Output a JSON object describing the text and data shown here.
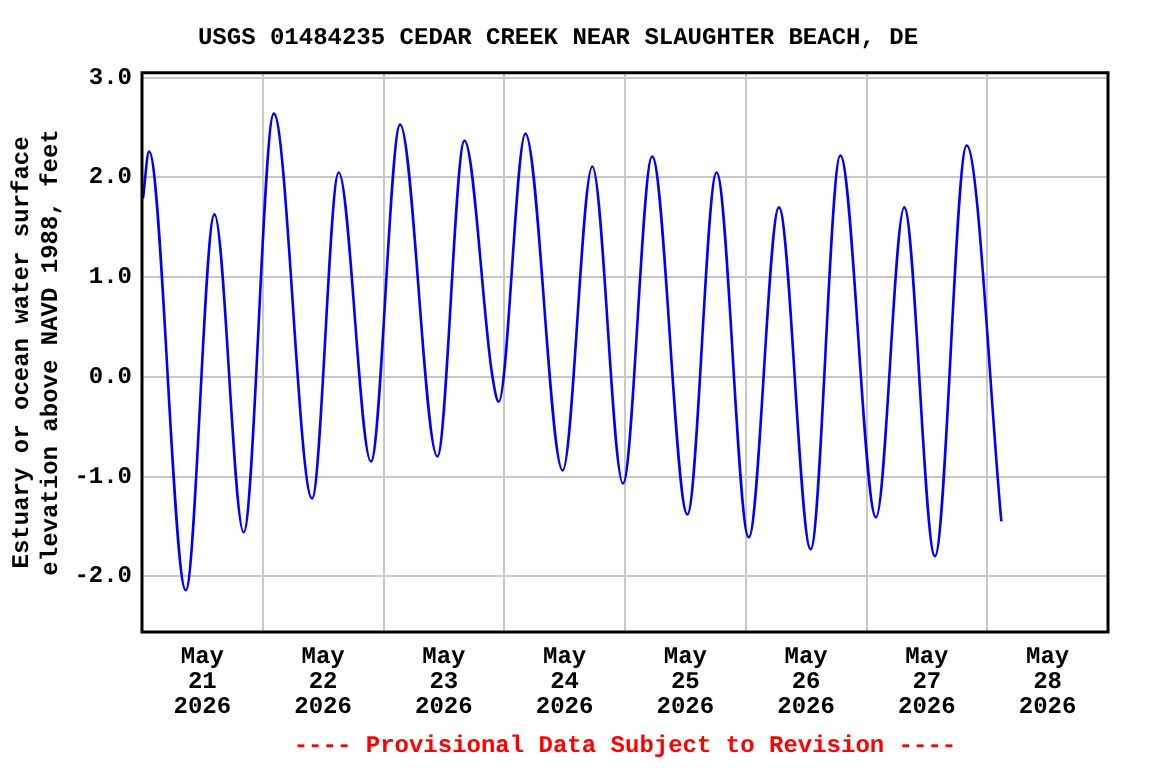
{
  "chart_data": {
    "type": "line",
    "title": "USGS 01484235 CEDAR CREEK NEAR SLAUGHTER BEACH, DE",
    "ylabel": "Estuary or ocean water surface\nelevation above NAVD 1988, feet",
    "annotations": [
      "---- Provisional Data Subject to Revision ----"
    ],
    "x": [
      "2026-05-21T00:12",
      "2026-05-21T01:24",
      "2026-05-21T08:42",
      "2026-05-21T14:24",
      "2026-05-21T20:12",
      "2026-05-22T02:12",
      "2026-05-22T09:48",
      "2026-05-22T15:06",
      "2026-05-22T21:30",
      "2026-05-23T03:18",
      "2026-05-23T10:42",
      "2026-05-23T16:06",
      "2026-05-23T21:36",
      "2026-05-23T22:54",
      "2026-05-24T04:12",
      "2026-05-24T11:36",
      "2026-05-24T17:30",
      "2026-05-24T23:36",
      "2026-05-25T05:24",
      "2026-05-25T12:24",
      "2026-05-25T18:12",
      "2026-05-26T00:36",
      "2026-05-26T06:36",
      "2026-05-26T12:54",
      "2026-05-26T18:48",
      "2026-05-27T01:54",
      "2026-05-27T07:30",
      "2026-05-27T13:36",
      "2026-05-27T19:54",
      "2026-05-28T02:48"
    ],
    "series": [
      {
        "color": "#0000ff",
        "values": [
          1.79,
          2.26,
          -2.14,
          1.63,
          -1.56,
          2.64,
          -1.22,
          2.05,
          -0.85,
          2.53,
          -0.8,
          2.37,
          0.02,
          -0.25,
          2.44,
          -0.94,
          2.11,
          -1.07,
          2.21,
          -1.38,
          2.05,
          -1.61,
          1.7,
          -1.73,
          2.22,
          -1.41,
          1.7,
          -1.8,
          2.32,
          -1.45
        ]
      }
    ],
    "xlim": [
      "2026-05-21T00:00",
      "2026-05-29T00:00"
    ],
    "xticks": [
      {
        "value": "2026-05-21T12:00",
        "label": "May 21 2026"
      },
      {
        "value": "2026-05-22T00:00",
        "label": null
      },
      {
        "value": "2026-05-22T12:00",
        "label": "May 22 2026"
      },
      {
        "value": "2026-05-23T00:00",
        "label": null
      },
      {
        "value": "2026-05-23T12:00",
        "label": "May 23 2026"
      },
      {
        "value": "2026-05-24T00:00",
        "label": null
      },
      {
        "value": "2026-05-24T12:00",
        "label": "May 24 2026"
      },
      {
        "value": "2026-05-25T00:00",
        "label": null
      },
      {
        "value": "2026-05-25T12:00",
        "label": "May 25 2026"
      },
      {
        "value": "2026-05-26T00:00",
        "label": null
      },
      {
        "value": "2026-05-26T12:00",
        "label": "May 26 2026"
      },
      {
        "value": "2026-05-27T00:00",
        "label": null
      },
      {
        "value": "2026-05-27T12:00",
        "label": "May 27 2026"
      },
      {
        "value": "2026-05-28T00:00",
        "label": null
      },
      {
        "value": "2026-05-28T12:00",
        "label": "May 28 2026"
      }
    ],
    "ylim": [
      -2.56,
      3.05
    ],
    "yticks": [
      {
        "value": -2,
        "label": "-2.0"
      },
      {
        "value": -1,
        "label": "-1.0"
      },
      {
        "value": 0,
        "label": "0.0"
      },
      {
        "value": 1,
        "label": "1.0"
      },
      {
        "value": 2,
        "label": "2.0"
      },
      {
        "value": 3,
        "label": "3.0"
      }
    ],
    "grid": true,
    "legend": false,
    "marker": "none",
    "line_style": "solid"
  }
}
